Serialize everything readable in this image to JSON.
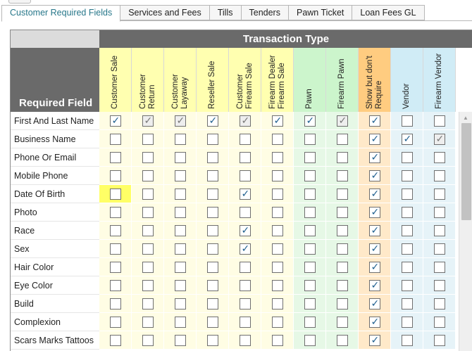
{
  "tabs": [
    {
      "label": "Customer Required Fields",
      "active": true
    },
    {
      "label": "Services and Fees",
      "active": false
    },
    {
      "label": "Tills",
      "active": false
    },
    {
      "label": "Tenders",
      "active": false
    },
    {
      "label": "Pawn Ticket",
      "active": false
    },
    {
      "label": "Loan Fees GL",
      "active": false
    }
  ],
  "grid": {
    "group_header": "Transaction Type",
    "row_header": "Required Field",
    "columns": [
      {
        "label": "Customer Sale",
        "color": "#ffffb0"
      },
      {
        "label": "Customer\nReturn",
        "color": "#ffffb0"
      },
      {
        "label": "Customer\nLayaway",
        "color": "#ffffb0"
      },
      {
        "label": "Reseller Sale",
        "color": "#ffffb0"
      },
      {
        "label": "Customer\nFirearm Sale",
        "color": "#ffffb0"
      },
      {
        "label": "Firearm Dealer\nFirearm Sale",
        "color": "#ffffb0"
      },
      {
        "label": "Pawn",
        "color": "#ccf5cc"
      },
      {
        "label": "Firearm Pawn",
        "color": "#ccf5cc"
      },
      {
        "label": "Show but don't\nRequire",
        "color": "#ffcc80"
      },
      {
        "label": "Vendor",
        "color": "#d0ecf6"
      },
      {
        "label": "Firearm Vendor",
        "color": "#d0ecf6"
      }
    ],
    "cell_colors": [
      "#fffde4",
      "#fffde4",
      "#fffde4",
      "#fffde4",
      "#fffde4",
      "#fffde4",
      "#e6f8e6",
      "#e6f8e6",
      "#ffe9c9",
      "#e6f3f8",
      "#e6f3f8"
    ],
    "rows": [
      {
        "label": "First And Last Name",
        "checks": [
          1,
          2,
          2,
          1,
          2,
          1,
          1,
          2,
          1,
          0,
          0
        ]
      },
      {
        "label": "Business Name",
        "checks": [
          0,
          0,
          0,
          0,
          0,
          0,
          0,
          0,
          1,
          1,
          2
        ]
      },
      {
        "label": "Phone Or Email",
        "checks": [
          0,
          0,
          0,
          0,
          0,
          0,
          0,
          0,
          1,
          0,
          0
        ]
      },
      {
        "label": "Mobile Phone",
        "checks": [
          0,
          0,
          0,
          0,
          0,
          0,
          0,
          0,
          1,
          0,
          0
        ]
      },
      {
        "label": "Date Of Birth",
        "checks": [
          0,
          0,
          0,
          0,
          1,
          0,
          0,
          0,
          1,
          0,
          0
        ]
      },
      {
        "label": "Photo",
        "checks": [
          0,
          0,
          0,
          0,
          0,
          0,
          0,
          0,
          1,
          0,
          0
        ]
      },
      {
        "label": "Race",
        "checks": [
          0,
          0,
          0,
          0,
          1,
          0,
          0,
          0,
          1,
          0,
          0
        ]
      },
      {
        "label": "Sex",
        "checks": [
          0,
          0,
          0,
          0,
          1,
          0,
          0,
          0,
          1,
          0,
          0
        ]
      },
      {
        "label": "Hair Color",
        "checks": [
          0,
          0,
          0,
          0,
          0,
          0,
          0,
          0,
          1,
          0,
          0
        ]
      },
      {
        "label": "Eye Color",
        "checks": [
          0,
          0,
          0,
          0,
          0,
          0,
          0,
          0,
          1,
          0,
          0
        ]
      },
      {
        "label": "Build",
        "checks": [
          0,
          0,
          0,
          0,
          0,
          0,
          0,
          0,
          1,
          0,
          0
        ]
      },
      {
        "label": "Complexion",
        "checks": [
          0,
          0,
          0,
          0,
          0,
          0,
          0,
          0,
          1,
          0,
          0
        ]
      },
      {
        "label": "Scars Marks Tattoos",
        "checks": [
          0,
          0,
          0,
          0,
          0,
          0,
          0,
          0,
          1,
          0,
          0
        ]
      }
    ],
    "highlight_cell": {
      "row": 4,
      "col": 0,
      "color": "#ffff66"
    }
  }
}
